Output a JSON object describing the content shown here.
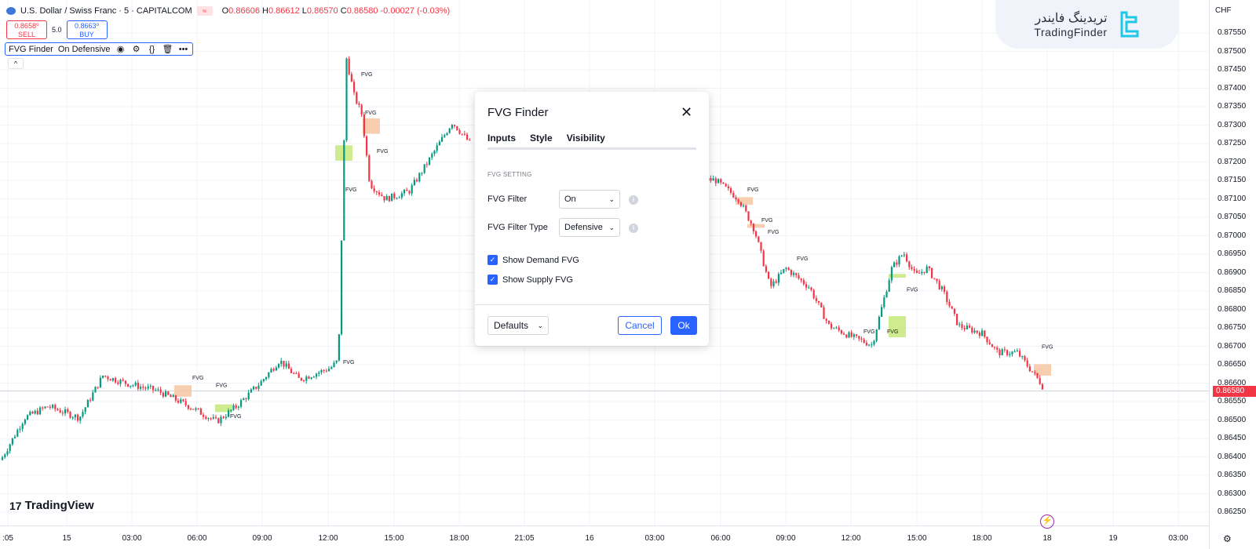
{
  "header": {
    "symbol": "U.S. Dollar / Swiss Franc · 5 · CAPITALCOM",
    "ohlc": {
      "o_label": "O",
      "o": "0.86606",
      "h_label": "H",
      "h": "0.86612",
      "l_label": "L",
      "l": "0.86570",
      "c_label": "C",
      "c": "0.86580",
      "change": "-0.00027 (-0.03%)"
    }
  },
  "trade": {
    "sell_price": "0.8658⁰",
    "sell_label": "SELL",
    "spread": "5.0",
    "buy_price": "0.8663⁰",
    "buy_label": "BUY"
  },
  "indicator": {
    "name": "FVG Finder",
    "params": "On Defensive"
  },
  "brand": {
    "fa": "تریدینگ فایندر",
    "en": "TradingFinder",
    "tv": "TradingView"
  },
  "currency": "CHF",
  "last_price": "0.86580",
  "price_ticks": [
    "0.87550",
    "0.87500",
    "0.87450",
    "0.87400",
    "0.87350",
    "0.87300",
    "0.87250",
    "0.87200",
    "0.87150",
    "0.87100",
    "0.87050",
    "0.87000",
    "0.86950",
    "0.86900",
    "0.86850",
    "0.86800",
    "0.86750",
    "0.86700",
    "0.86650",
    "0.86600",
    "0.86550",
    "0.86500",
    "0.86450",
    "0.86400",
    "0.86350",
    "0.86300",
    "0.86250"
  ],
  "time_ticks": [
    ":05",
    "15",
    "03:00",
    "06:00",
    "09:00",
    "12:00",
    "15:00",
    "18:00",
    "21:05",
    "16",
    "03:00",
    "06:00",
    "09:00",
    "12:00",
    "15:00",
    "18:00",
    "18",
    "19",
    "03:00"
  ],
  "fvg_label": "FVG",
  "dialog": {
    "title": "FVG Finder",
    "tabs": [
      "Inputs",
      "Style",
      "Visibility"
    ],
    "section": "FVG SETTING",
    "fvg_filter_label": "FVG Filter",
    "fvg_filter_value": "On",
    "fvg_filter_type_label": "FVG Filter Type",
    "fvg_filter_type_value": "Defensive",
    "show_demand": "Show Demand FVG",
    "show_supply": "Show Supply FVG",
    "defaults": "Defaults",
    "cancel": "Cancel",
    "ok": "Ok"
  },
  "colors": {
    "up": "#089981",
    "down": "#f23645",
    "demand_zone": "#c6e87a",
    "supply_zone": "#f7c6a3",
    "accent": "#2962ff"
  },
  "chart_data": {
    "type": "candlestick",
    "symbol": "USDCHF",
    "timeframe": "5",
    "ylim": [
      0.8625,
      0.8757
    ],
    "price_path": [
      [
        0,
        0.864
      ],
      [
        30,
        0.8651
      ],
      [
        60,
        0.8654
      ],
      [
        100,
        0.8651
      ],
      [
        130,
        0.8662
      ],
      [
        160,
        0.866
      ],
      [
        200,
        0.8658
      ],
      [
        240,
        0.8654
      ],
      [
        275,
        0.865
      ],
      [
        300,
        0.8654
      ],
      [
        330,
        0.866
      ],
      [
        355,
        0.8666
      ],
      [
        380,
        0.8661
      ],
      [
        420,
        0.8664
      ],
      [
        430,
        0.8666
      ],
      [
        440,
        0.8745
      ],
      [
        450,
        0.8735
      ],
      [
        460,
        0.873
      ],
      [
        470,
        0.8712
      ],
      [
        490,
        0.8708
      ],
      [
        520,
        0.871
      ],
      [
        545,
        0.8718
      ],
      [
        575,
        0.8728
      ],
      [
        600,
        0.8722
      ],
      [
        890,
        0.8713
      ],
      [
        910,
        0.8713
      ],
      [
        940,
        0.8708
      ],
      [
        960,
        0.87
      ],
      [
        980,
        0.8685
      ],
      [
        1000,
        0.869
      ],
      [
        1030,
        0.8685
      ],
      [
        1055,
        0.8675
      ],
      [
        1085,
        0.8672
      ],
      [
        1110,
        0.867
      ],
      [
        1135,
        0.869
      ],
      [
        1150,
        0.8694
      ],
      [
        1165,
        0.8688
      ],
      [
        1180,
        0.869
      ],
      [
        1200,
        0.8684
      ],
      [
        1220,
        0.8675
      ],
      [
        1250,
        0.8673
      ],
      [
        1270,
        0.8668
      ],
      [
        1295,
        0.8668
      ],
      [
        1325,
        0.866
      ],
      [
        1330,
        0.8658
      ]
    ],
    "fvg_zones": [
      {
        "x": 230,
        "p1": 0.86595,
        "p2": 0.86565,
        "kind": "supply"
      },
      {
        "x": 282,
        "p1": 0.86545,
        "p2": 0.86525,
        "kind": "demand"
      },
      {
        "x": 435,
        "p1": 0.8722,
        "p2": 0.8718,
        "kind": "demand"
      },
      {
        "x": 470,
        "p1": 0.8729,
        "p2": 0.8725,
        "kind": "supply"
      },
      {
        "x": 945,
        "p1": 0.87085,
        "p2": 0.87065,
        "kind": "supply"
      },
      {
        "x": 960,
        "p1": 0.87015,
        "p2": 0.87005,
        "kind": "supply"
      },
      {
        "x": 1140,
        "p1": 0.86885,
        "p2": 0.86875,
        "kind": "demand"
      },
      {
        "x": 1140,
        "p1": 0.86775,
        "p2": 0.8672,
        "kind": "demand"
      },
      {
        "x": 1325,
        "p1": 0.8665,
        "p2": 0.8662,
        "kind": "supply"
      }
    ],
    "fvg_label_points": [
      [
        460,
        0.874
      ],
      [
        465,
        0.873
      ],
      [
        480,
        0.872
      ],
      [
        440,
        0.871
      ],
      [
        437,
        0.8665
      ],
      [
        245,
        0.8661
      ],
      [
        275,
        0.8659
      ],
      [
        293,
        0.8651
      ],
      [
        952,
        0.871
      ],
      [
        970,
        0.8702
      ],
      [
        978,
        0.8699
      ],
      [
        1015,
        0.8692
      ],
      [
        1100,
        0.8673
      ],
      [
        1130,
        0.8673
      ],
      [
        1155,
        0.8684
      ],
      [
        1327,
        0.8669
      ]
    ]
  }
}
